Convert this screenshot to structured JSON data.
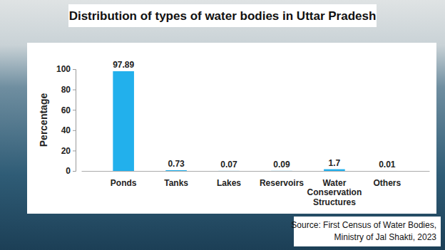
{
  "chart_data": {
    "type": "bar",
    "title": "Distribution of types of water bodies in Uttar Pradesh",
    "y_label": "Percentage",
    "categories": [
      "Ponds",
      "Tanks",
      "Lakes",
      "Reservoirs",
      "Water Conservation Structures",
      "Others"
    ],
    "values": [
      97.89,
      0.73,
      0.07,
      0.09,
      1.7,
      0.01
    ],
    "color": "#22b0ec",
    "ylim": [
      0,
      100
    ],
    "yticks": [
      0,
      20,
      40,
      60,
      80,
      100
    ],
    "grid": false,
    "data_labels": true,
    "source": [
      "Source: First Census of Water Bodies,",
      "Ministry of Jal Shakti, 2023"
    ]
  }
}
